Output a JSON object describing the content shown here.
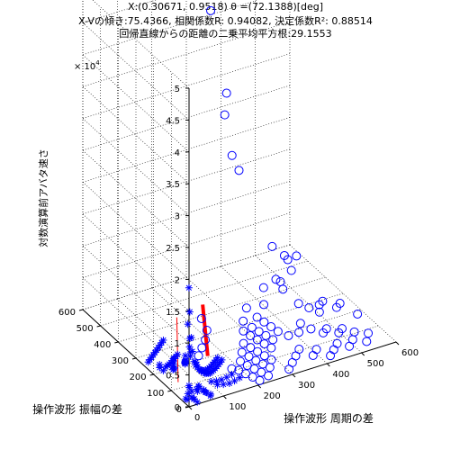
{
  "chart_data": {
    "type": "scatter3d",
    "title_lines": [
      "X:(0.30671, 0.9518)  θ =(72.1388)[deg]",
      "X-Vの傾き:75.4366, 相関係数R: 0.94082, 決定係数R²: 0.88514",
      "回帰直線からの距離の二乗平均平方根:29.1553"
    ],
    "xlabel": "操作波形 周期の差",
    "ylabel": "操作波形 振幅の差",
    "zlabel": "対数演算前アバタ速さ",
    "z_exponent": "× 10",
    "z_exponent_power": "4",
    "xlim": [
      0,
      600
    ],
    "ylim": [
      0,
      600
    ],
    "zlim": [
      0,
      50000
    ],
    "x_ticks": [
      "0",
      "100",
      "200",
      "300",
      "400",
      "500",
      "600"
    ],
    "y_ticks": [
      "0",
      "100",
      "200",
      "300",
      "400",
      "500",
      "600"
    ],
    "z_ticks": [
      "0",
      "0.5",
      "1",
      "1.5",
      "2",
      "2.5",
      "3",
      "3.5",
      "4",
      "4.5",
      "5"
    ],
    "grid": true,
    "colors": {
      "markers": "#0000ff",
      "regression": "#ff0000",
      "axes": "#000000"
    },
    "series": [
      {
        "marker": "star",
        "points": [
          [
            10,
            20,
            18000
          ],
          [
            15,
            25,
            14000
          ],
          [
            12,
            30,
            12000
          ],
          [
            18,
            22,
            10000
          ],
          [
            20,
            35,
            9500
          ],
          [
            22,
            40,
            8000
          ],
          [
            25,
            30,
            7500
          ],
          [
            28,
            45,
            7000
          ],
          [
            15,
            50,
            6500
          ],
          [
            30,
            20,
            6000
          ],
          [
            32,
            55,
            6000
          ],
          [
            35,
            40,
            5500
          ],
          [
            20,
            60,
            5500
          ],
          [
            40,
            35,
            5000
          ],
          [
            25,
            70,
            5000
          ],
          [
            45,
            50,
            4500
          ],
          [
            30,
            80,
            4500
          ],
          [
            50,
            30,
            4000
          ],
          [
            35,
            90,
            4000
          ],
          [
            55,
            60,
            3800
          ],
          [
            40,
            100,
            3500
          ],
          [
            60,
            45,
            3500
          ],
          [
            45,
            110,
            3200
          ],
          [
            65,
            70,
            3000
          ],
          [
            50,
            120,
            3000
          ],
          [
            70,
            55,
            2800
          ],
          [
            55,
            130,
            2600
          ],
          [
            75,
            80,
            2500
          ],
          [
            60,
            140,
            2400
          ],
          [
            80,
            65,
            2200
          ],
          [
            65,
            150,
            2000
          ],
          [
            85,
            90,
            2000
          ],
          [
            70,
            160,
            1800
          ],
          [
            90,
            75,
            1800
          ],
          [
            20,
            170,
            1600
          ],
          [
            95,
            100,
            1500
          ],
          [
            30,
            180,
            1400
          ],
          [
            100,
            85,
            1400
          ],
          [
            40,
            190,
            1200
          ],
          [
            105,
            110,
            1200
          ],
          [
            50,
            200,
            1000
          ],
          [
            110,
            95,
            1000
          ],
          [
            60,
            210,
            900
          ],
          [
            115,
            120,
            900
          ],
          [
            70,
            220,
            800
          ],
          [
            120,
            105,
            800
          ],
          [
            80,
            230,
            700
          ],
          [
            125,
            130,
            700
          ],
          [
            90,
            240,
            600
          ],
          [
            130,
            115,
            600
          ],
          [
            10,
            250,
            500
          ],
          [
            135,
            140,
            500
          ],
          [
            20,
            260,
            450
          ],
          [
            140,
            125,
            450
          ],
          [
            30,
            270,
            400
          ],
          [
            145,
            150,
            400
          ],
          [
            40,
            280,
            350
          ],
          [
            150,
            135,
            350
          ],
          [
            50,
            290,
            300
          ],
          [
            155,
            160,
            300
          ],
          [
            60,
            300,
            250
          ],
          [
            160,
            145,
            250
          ],
          [
            70,
            310,
            200
          ],
          [
            165,
            170,
            200
          ],
          [
            80,
            320,
            180
          ],
          [
            170,
            155,
            180
          ],
          [
            90,
            330,
            150
          ],
          [
            175,
            180,
            150
          ],
          [
            100,
            340,
            120
          ],
          [
            180,
            165,
            120
          ],
          [
            5,
            10,
            3000
          ],
          [
            8,
            15,
            2500
          ],
          [
            12,
            8,
            2000
          ],
          [
            6,
            18,
            1500
          ],
          [
            14,
            12,
            1000
          ],
          [
            18,
            6,
            800
          ],
          [
            3,
            24,
            600
          ],
          [
            22,
            16,
            400
          ],
          [
            9,
            28,
            300
          ],
          [
            26,
            4,
            200
          ],
          [
            35,
            15,
            2200
          ],
          [
            42,
            25,
            1900
          ],
          [
            48,
            10,
            1600
          ],
          [
            38,
            32,
            1300
          ],
          [
            52,
            20,
            1100
          ],
          [
            58,
            14,
            900
          ],
          [
            44,
            38,
            700
          ],
          [
            62,
            28,
            500
          ],
          [
            66,
            8,
            400
          ],
          [
            72,
            18,
            300
          ],
          [
            15,
            120,
            2500
          ],
          [
            25,
            135,
            2100
          ],
          [
            35,
            150,
            1700
          ],
          [
            10,
            165,
            1300
          ],
          [
            45,
            180,
            1000
          ],
          [
            55,
            195,
            800
          ],
          [
            20,
            205,
            600
          ],
          [
            65,
            215,
            500
          ],
          [
            30,
            225,
            400
          ],
          [
            75,
            235,
            300
          ],
          [
            85,
            40,
            1500
          ],
          [
            95,
            25,
            1200
          ],
          [
            105,
            50,
            1000
          ],
          [
            115,
            30,
            800
          ],
          [
            125,
            60,
            600
          ],
          [
            135,
            35,
            500
          ],
          [
            145,
            70,
            400
          ],
          [
            155,
            45,
            300
          ],
          [
            165,
            80,
            250
          ],
          [
            175,
            55,
            200
          ]
        ]
      },
      {
        "marker": "circle",
        "points": [
          [
            350,
            560,
            42000
          ],
          [
            355,
            480,
            31000
          ],
          [
            360,
            500,
            27000
          ],
          [
            340,
            420,
            23000
          ],
          [
            350,
            400,
            21000
          ],
          [
            400,
            310,
            10500
          ],
          [
            420,
            280,
            9500
          ],
          [
            430,
            260,
            7500
          ],
          [
            440,
            300,
            8000
          ],
          [
            460,
            290,
            8500
          ],
          [
            380,
            250,
            7200
          ],
          [
            390,
            230,
            6000
          ],
          [
            370,
            300,
            4800
          ],
          [
            350,
            260,
            3500
          ],
          [
            470,
            400,
            1500
          ],
          [
            420,
            200,
            4000
          ],
          [
            440,
            180,
            3500
          ],
          [
            460,
            160,
            3000
          ],
          [
            480,
            200,
            2800
          ],
          [
            500,
            220,
            2500
          ],
          [
            520,
            180,
            2200
          ],
          [
            540,
            200,
            2000
          ],
          [
            400,
            150,
            2500
          ],
          [
            380,
            120,
            2200
          ],
          [
            420,
            130,
            1800
          ],
          [
            440,
            100,
            1600
          ],
          [
            460,
            120,
            1400
          ],
          [
            480,
            90,
            1200
          ],
          [
            500,
            110,
            1000
          ],
          [
            520,
            80,
            900
          ],
          [
            300,
            260,
            3800
          ],
          [
            310,
            220,
            3200
          ],
          [
            320,
            200,
            2800
          ],
          [
            330,
            180,
            2400
          ],
          [
            340,
            160,
            2000
          ],
          [
            280,
            240,
            2600
          ],
          [
            290,
            210,
            2200
          ],
          [
            300,
            190,
            1900
          ],
          [
            310,
            170,
            1600
          ],
          [
            320,
            150,
            1300
          ],
          [
            260,
            200,
            2400
          ],
          [
            270,
            180,
            2000
          ],
          [
            280,
            160,
            1700
          ],
          [
            290,
            140,
            1400
          ],
          [
            300,
            120,
            1100
          ],
          [
            240,
            160,
            1800
          ],
          [
            250,
            140,
            1500
          ],
          [
            260,
            120,
            1200
          ],
          [
            270,
            100,
            900
          ],
          [
            280,
            80,
            600
          ],
          [
            220,
            130,
            1500
          ],
          [
            230,
            110,
            1200
          ],
          [
            240,
            90,
            900
          ],
          [
            250,
            70,
            700
          ],
          [
            260,
            50,
            500
          ],
          [
            200,
            100,
            1200
          ],
          [
            210,
            80,
            900
          ],
          [
            220,
            60,
            700
          ],
          [
            230,
            40,
            500
          ],
          [
            240,
            20,
            300
          ],
          [
            180,
            70,
            900
          ],
          [
            190,
            50,
            700
          ],
          [
            200,
            30,
            500
          ],
          [
            210,
            10,
            300
          ],
          [
            170,
            90,
            800
          ],
          [
            560,
            140,
            1500
          ],
          [
            550,
            60,
            700
          ],
          [
            530,
            30,
            500
          ],
          [
            500,
            50,
            800
          ],
          [
            480,
            30,
            600
          ],
          [
            360,
            80,
            900
          ],
          [
            340,
            60,
            700
          ],
          [
            320,
            40,
            500
          ],
          [
            300,
            20,
            300
          ],
          [
            380,
            40,
            600
          ],
          [
            400,
            60,
            700
          ],
          [
            420,
            20,
            400
          ],
          [
            440,
            40,
            500
          ],
          [
            460,
            60,
            600
          ],
          [
            360,
            140,
            1500
          ],
          [
            180,
            250,
            2600
          ],
          [
            160,
            220,
            2200
          ],
          [
            140,
            200,
            1800
          ],
          [
            120,
            180,
            1400
          ],
          [
            190,
            300,
            3000
          ]
        ]
      }
    ],
    "regression_lines": [
      {
        "width": "thick",
        "from": [
          60,
          40,
          14000
        ],
        "to": [
          85,
          60,
          5000
        ]
      },
      {
        "width": "thin",
        "from": [
          30,
          120,
          300
        ],
        "to": [
          180,
          420,
          300
        ]
      }
    ]
  }
}
